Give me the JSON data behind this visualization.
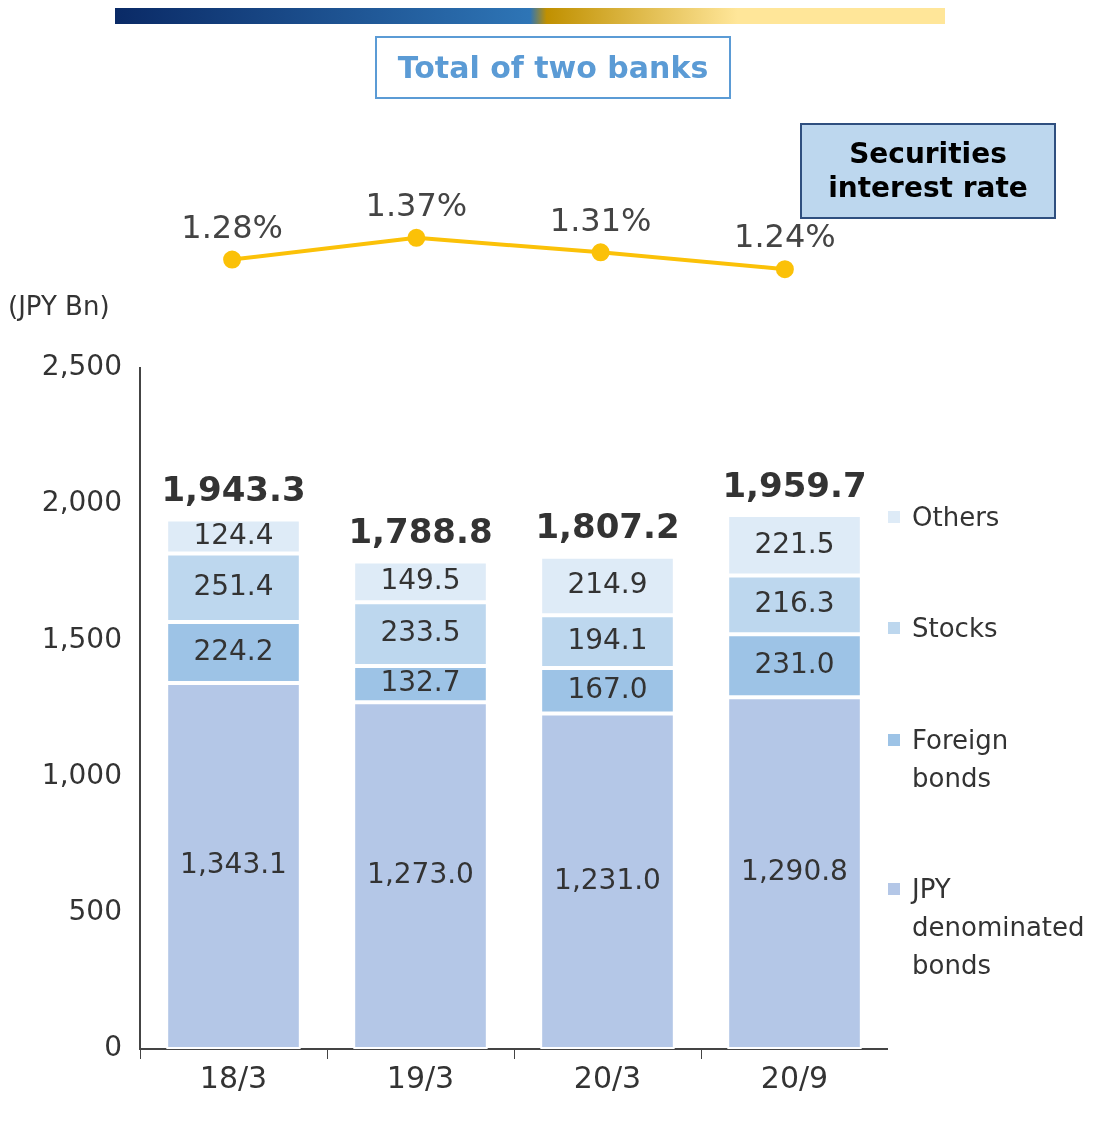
{
  "chart_data": [
    {
      "type": "line",
      "title": "Total of two banks",
      "categories": [
        null,
        null,
        null,
        null
      ],
      "legend": "top right",
      "marker": "circle",
      "series": [
        {
          "name": "Securities interest rate",
          "color": "#fbc108",
          "values": [
            1.28,
            1.37,
            1.31,
            1.24
          ],
          "value_labels": [
            "1.28%",
            "1.37%",
            "1.31%",
            "1.24%"
          ]
        }
      ]
    },
    {
      "type": "bar",
      "stacked": true,
      "categories": [
        "18/3",
        "19/3",
        "20/3",
        "20/9"
      ],
      "ylabel": "(JPY Bn)",
      "ylim": [
        0,
        2500
      ],
      "yticks": [
        0,
        500,
        {
          "value": 1000,
          "label": "1,000"
        },
        {
          "value": 1500,
          "label": "1,500"
        },
        {
          "value": 2000,
          "label": "2,000"
        },
        {
          "value": 2500,
          "label": "2,500"
        }
      ],
      "legend": "right",
      "totals": [
        "1,943.3",
        "1,788.8",
        "1,807.2",
        "1,959.7"
      ],
      "series": [
        {
          "name": "JPY denominated bonds",
          "color": "#b4c7e7",
          "values": [
            1343.1,
            1273.0,
            1231.0,
            1290.8
          ],
          "value_labels": [
            "1,343.1",
            "1,273.0",
            "1,231.0",
            "1,290.8"
          ]
        },
        {
          "name": "Foreign bonds",
          "color": "#9dc3e6",
          "values": [
            224.2,
            132.7,
            167.0,
            231.0
          ],
          "value_labels": [
            "224.2",
            "132.7",
            "167.0",
            "231.0"
          ]
        },
        {
          "name": "Stocks",
          "color": "#bdd7ee",
          "values": [
            251.4,
            233.5,
            194.1,
            216.3
          ],
          "value_labels": [
            "251.4",
            "233.5",
            "194.1",
            "216.3"
          ]
        },
        {
          "name": "Others",
          "color": "#deebf7",
          "values": [
            124.4,
            149.5,
            214.9,
            221.5
          ],
          "value_labels": [
            "124.4",
            "149.5",
            "214.9",
            "221.5"
          ]
        }
      ]
    }
  ]
}
